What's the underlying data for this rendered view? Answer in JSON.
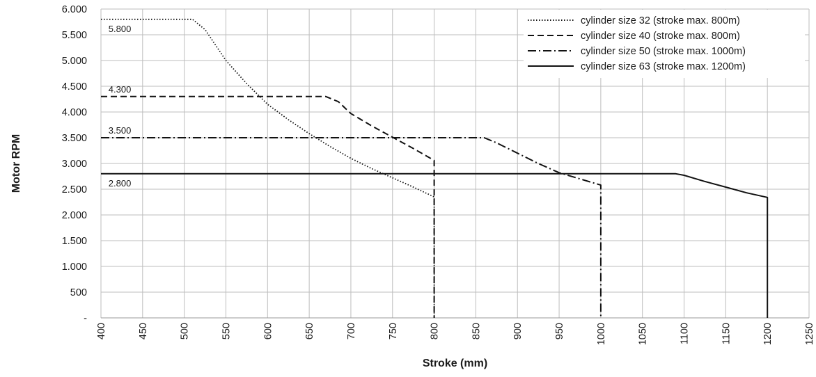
{
  "chart_data": {
    "type": "line",
    "title": "",
    "xlabel": "Stroke (mm)",
    "ylabel": "Motor RPM",
    "xlim": [
      400,
      1250
    ],
    "ylim": [
      0,
      6000
    ],
    "x_ticks": [
      {
        "value": 400,
        "label": "400"
      },
      {
        "value": 450,
        "label": "450"
      },
      {
        "value": 500,
        "label": "500"
      },
      {
        "value": 550,
        "label": "550"
      },
      {
        "value": 600,
        "label": "600"
      },
      {
        "value": 650,
        "label": "650"
      },
      {
        "value": 700,
        "label": "700"
      },
      {
        "value": 750,
        "label": "750"
      },
      {
        "value": 800,
        "label": "800"
      },
      {
        "value": 850,
        "label": "850"
      },
      {
        "value": 900,
        "label": "900"
      },
      {
        "value": 950,
        "label": "950"
      },
      {
        "value": 1000,
        "label": "1000"
      },
      {
        "value": 1050,
        "label": "1050"
      },
      {
        "value": 1100,
        "label": "1100"
      },
      {
        "value": 1150,
        "label": "1150"
      },
      {
        "value": 1200,
        "label": "1200"
      },
      {
        "value": 1250,
        "label": "1250"
      }
    ],
    "y_ticks": [
      {
        "value": 0,
        "label": "-"
      },
      {
        "value": 500,
        "label": "500"
      },
      {
        "value": 1000,
        "label": "1.000"
      },
      {
        "value": 1500,
        "label": "1.500"
      },
      {
        "value": 2000,
        "label": "2.000"
      },
      {
        "value": 2500,
        "label": "2.500"
      },
      {
        "value": 3000,
        "label": "3.000"
      },
      {
        "value": 3500,
        "label": "3.500"
      },
      {
        "value": 4000,
        "label": "4.000"
      },
      {
        "value": 4500,
        "label": "4.500"
      },
      {
        "value": 5000,
        "label": "5.000"
      },
      {
        "value": 5500,
        "label": "5.500"
      },
      {
        "value": 6000,
        "label": "6.000"
      }
    ],
    "grid": true,
    "legend_position": "top-right",
    "series": [
      {
        "name": "cylinder size 32 (stroke max. 800m)",
        "line_style": "dotted",
        "color": "#111111",
        "points": [
          [
            400,
            5800
          ],
          [
            510,
            5800
          ],
          [
            525,
            5600
          ],
          [
            550,
            5000
          ],
          [
            575,
            4550
          ],
          [
            600,
            4150
          ],
          [
            625,
            3850
          ],
          [
            650,
            3580
          ],
          [
            675,
            3330
          ],
          [
            700,
            3100
          ],
          [
            725,
            2900
          ],
          [
            750,
            2720
          ],
          [
            775,
            2540
          ],
          [
            800,
            2350
          ],
          [
            800,
            0
          ]
        ],
        "label": {
          "text": "5.800",
          "x": 404,
          "y": 5800
        }
      },
      {
        "name": "cylinder size 40 (stroke max. 800m)",
        "line_style": "dashed",
        "color": "#111111",
        "points": [
          [
            400,
            4300
          ],
          [
            670,
            4300
          ],
          [
            685,
            4200
          ],
          [
            700,
            3970
          ],
          [
            725,
            3730
          ],
          [
            750,
            3510
          ],
          [
            775,
            3290
          ],
          [
            800,
            3060
          ],
          [
            800,
            0
          ]
        ],
        "label": {
          "text": "4.300",
          "x": 404,
          "y": 4300
        }
      },
      {
        "name": "cylinder size 50 (stroke max. 1000m)",
        "line_style": "dashdot",
        "color": "#111111",
        "points": [
          [
            400,
            3500
          ],
          [
            860,
            3500
          ],
          [
            875,
            3400
          ],
          [
            900,
            3200
          ],
          [
            925,
            3000
          ],
          [
            950,
            2820
          ],
          [
            975,
            2700
          ],
          [
            1000,
            2580
          ],
          [
            1000,
            0
          ]
        ],
        "label": {
          "text": "3.500",
          "x": 404,
          "y": 3500
        }
      },
      {
        "name": "cylinder size 63 (stroke max. 1200m)",
        "line_style": "solid",
        "color": "#111111",
        "points": [
          [
            400,
            2800
          ],
          [
            1090,
            2800
          ],
          [
            1100,
            2770
          ],
          [
            1125,
            2650
          ],
          [
            1150,
            2540
          ],
          [
            1175,
            2430
          ],
          [
            1200,
            2340
          ],
          [
            1200,
            0
          ]
        ],
        "label": {
          "text": "2.800",
          "x": 404,
          "y": 2800
        }
      }
    ]
  }
}
